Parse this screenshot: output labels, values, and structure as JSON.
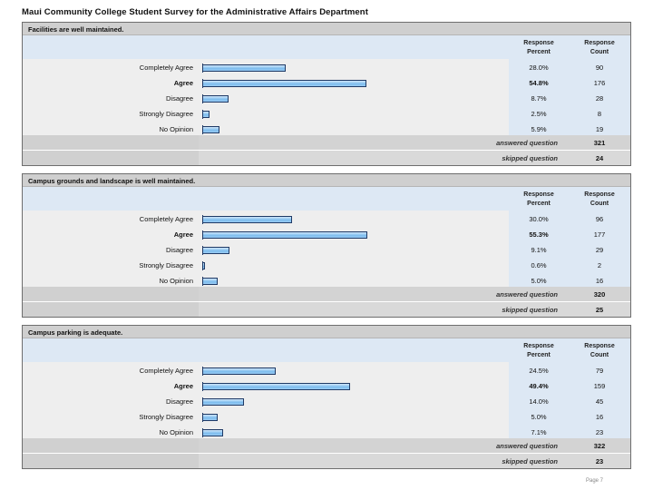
{
  "page": {
    "title": "Maui Community College Student Survey for the Administrative Affairs Department",
    "page_number": "Page 7"
  },
  "columns": {
    "percent_line1": "Response",
    "percent_line2": "Percent",
    "count_line1": "Response",
    "count_line2": "Count"
  },
  "summary_labels": {
    "answered": "answered question",
    "skipped": "skipped question"
  },
  "colors": {
    "bar_fill": "#7bbcee",
    "bar_border": "#1f3a66",
    "header_band": "#dde8f4",
    "question_header": "#cfcfcf"
  },
  "chart_data": [
    {
      "type": "bar",
      "orientation": "horizontal",
      "title": "Facilities are well maintained.",
      "categories": [
        "Completely Agree",
        "Agree",
        "Disagree",
        "Strongly Disagree",
        "No Opinion"
      ],
      "percent_labels": [
        "28.0%",
        "54.8%",
        "8.7%",
        "2.5%",
        "5.9%"
      ],
      "values": [
        28.0,
        54.8,
        8.7,
        2.5,
        5.9
      ],
      "counts": [
        "90",
        "176",
        "28",
        "8",
        "19"
      ],
      "answered": "321",
      "skipped": "24",
      "emphasis_index": 1
    },
    {
      "type": "bar",
      "orientation": "horizontal",
      "title": "Campus grounds and landscape is well maintained.",
      "categories": [
        "Completely Agree",
        "Agree",
        "Disagree",
        "Strongly Disagree",
        "No Opinion"
      ],
      "percent_labels": [
        "30.0%",
        "55.3%",
        "9.1%",
        "0.6%",
        "5.0%"
      ],
      "values": [
        30.0,
        55.3,
        9.1,
        0.6,
        5.0
      ],
      "counts": [
        "96",
        "177",
        "29",
        "2",
        "16"
      ],
      "answered": "320",
      "skipped": "25",
      "emphasis_index": 1
    },
    {
      "type": "bar",
      "orientation": "horizontal",
      "title": "Campus parking is adequate.",
      "categories": [
        "Completely Agree",
        "Agree",
        "Disagree",
        "Strongly Disagree",
        "No Opinion"
      ],
      "percent_labels": [
        "24.5%",
        "49.4%",
        "14.0%",
        "5.0%",
        "7.1%"
      ],
      "values": [
        24.5,
        49.4,
        14.0,
        5.0,
        7.1
      ],
      "counts": [
        "79",
        "159",
        "45",
        "16",
        "23"
      ],
      "answered": "322",
      "skipped": "23",
      "emphasis_index": 1
    }
  ]
}
